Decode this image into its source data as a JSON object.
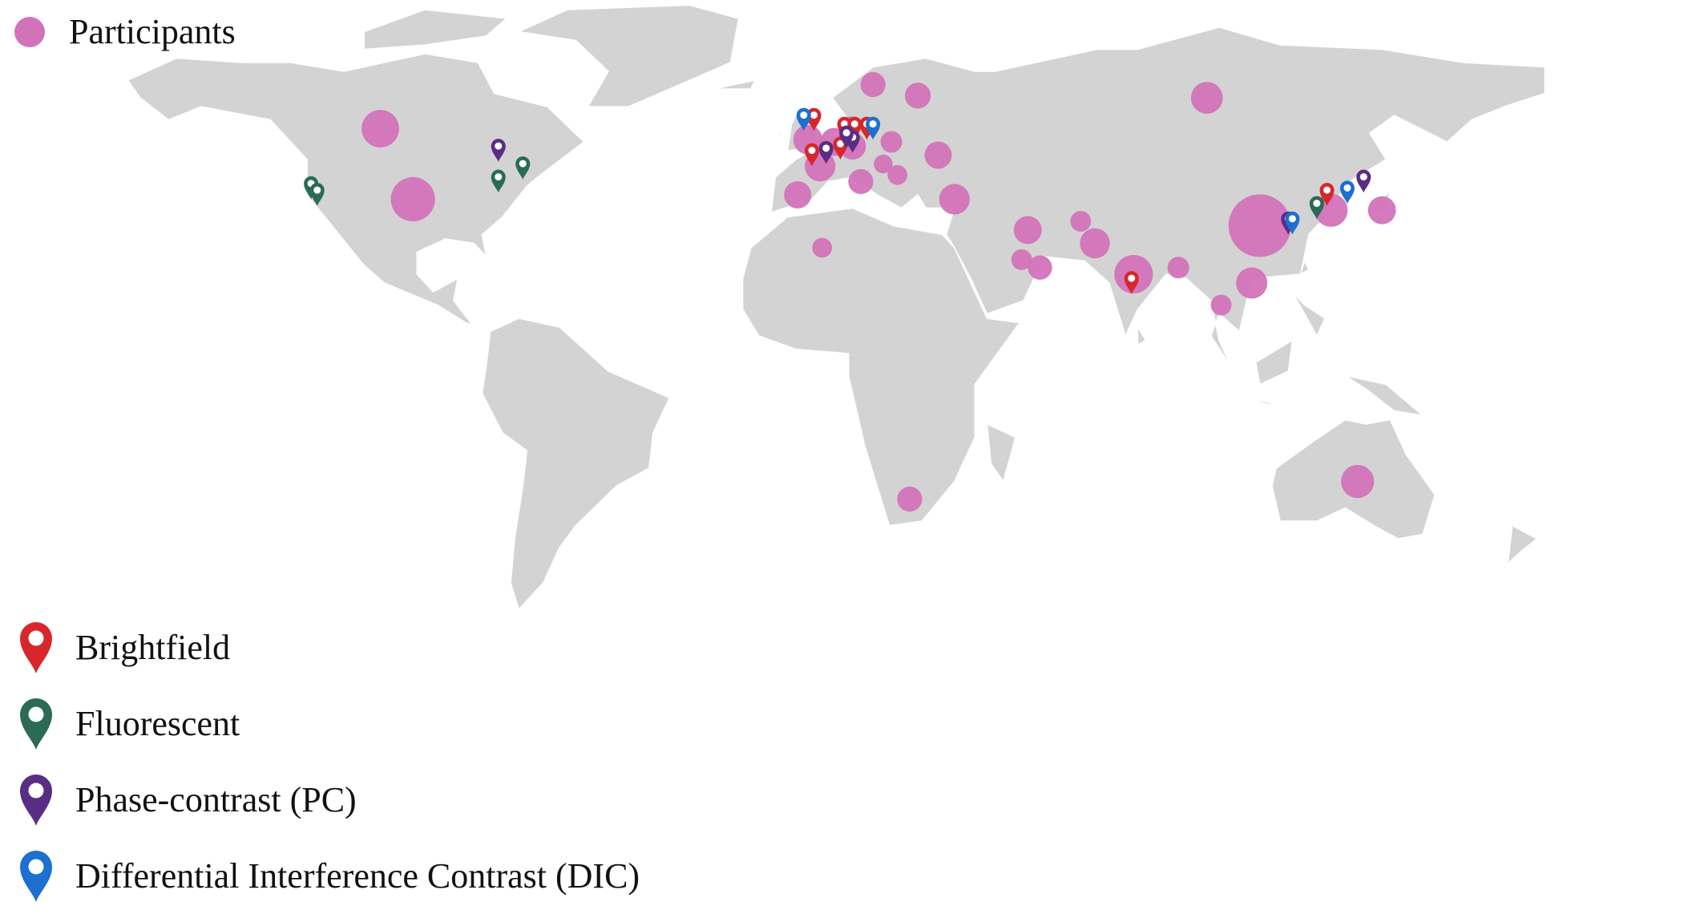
{
  "legend": {
    "participants_label": "Participants",
    "participants_color": "#d273b9",
    "markers": [
      {
        "label": "Brightfield",
        "color": "#d7262c"
      },
      {
        "label": "Fluorescent",
        "color": "#2b6a55"
      },
      {
        "label": "Phase-contrast (PC)",
        "color": "#5a2d85"
      },
      {
        "label": "Differential Interference Contrast (DIC)",
        "color": "#1d6fd0"
      }
    ]
  },
  "map": {
    "land_color": "#d3d3d3",
    "participants": [
      {
        "location": "China",
        "lon": 110,
        "lat": 33,
        "relative_size": 1.0
      },
      {
        "location": "United States",
        "lon": -98,
        "lat": 39,
        "relative_size": 0.5
      },
      {
        "location": "India",
        "lon": 79,
        "lat": 22,
        "relative_size": 0.38
      },
      {
        "location": "Canada",
        "lon": -106,
        "lat": 55,
        "relative_size": 0.36
      },
      {
        "location": "Australia",
        "lon": 134,
        "lat": -25,
        "relative_size": 0.28
      },
      {
        "location": "South Korea",
        "lon": 127.5,
        "lat": 36.5,
        "relative_size": 0.28
      },
      {
        "location": "Russia",
        "lon": 97,
        "lat": 62,
        "relative_size": 0.26
      },
      {
        "location": "Turkey",
        "lon": 35,
        "lat": 39,
        "relative_size": 0.24
      },
      {
        "location": "Vietnam / South China",
        "lon": 108,
        "lat": 20,
        "relative_size": 0.25
      },
      {
        "location": "Pakistan",
        "lon": 69.5,
        "lat": 29,
        "relative_size": 0.23
      },
      {
        "location": "Iran",
        "lon": 53,
        "lat": 32,
        "relative_size": 0.2
      },
      {
        "location": "Ukraine",
        "lon": 31,
        "lat": 49,
        "relative_size": 0.19
      },
      {
        "location": "Japan",
        "lon": 140,
        "lat": 36.5,
        "relative_size": 0.2
      },
      {
        "location": "Spain",
        "lon": -3.5,
        "lat": 40,
        "relative_size": 0.19
      },
      {
        "location": "Finland",
        "lon": 26,
        "lat": 62.5,
        "relative_size": 0.17
      },
      {
        "location": "Sweden / Norway",
        "lon": 15,
        "lat": 65,
        "relative_size": 0.16
      },
      {
        "location": "South Africa",
        "lon": 24,
        "lat": -29,
        "relative_size": 0.16
      },
      {
        "location": "Netherlands",
        "lon": 5.5,
        "lat": 52,
        "relative_size": 0.2
      },
      {
        "location": "Germany",
        "lon": 10,
        "lat": 51,
        "relative_size": 0.18
      },
      {
        "location": "Italy",
        "lon": 12,
        "lat": 43,
        "relative_size": 0.16
      },
      {
        "location": "United Kingdom",
        "lon": -1,
        "lat": 52.5,
        "relative_size": 0.22
      },
      {
        "location": "France",
        "lon": 2,
        "lat": 46.5,
        "relative_size": 0.24
      },
      {
        "location": "Oman / UAE",
        "lon": 56,
        "lat": 23.5,
        "relative_size": 0.15
      },
      {
        "location": "Bangladesh",
        "lon": 90,
        "lat": 23.5,
        "relative_size": 0.12
      },
      {
        "location": "Qatar",
        "lon": 51.5,
        "lat": 25.3,
        "relative_size": 0.11
      },
      {
        "location": "Thailand",
        "lon": 100.5,
        "lat": 15,
        "relative_size": 0.11
      },
      {
        "location": "Afghanistan",
        "lon": 66,
        "lat": 34,
        "relative_size": 0.11
      },
      {
        "location": "Poland",
        "lon": 19.5,
        "lat": 52,
        "relative_size": 0.12
      },
      {
        "location": "Serbia",
        "lon": 21,
        "lat": 44.5,
        "relative_size": 0.1
      },
      {
        "location": "Hungary",
        "lon": 17.5,
        "lat": 47,
        "relative_size": 0.09
      },
      {
        "location": "Algeria",
        "lon": 2.5,
        "lat": 28,
        "relative_size": 0.1
      },
      {
        "location": "Denmark",
        "lon": 9.5,
        "lat": 55.5,
        "relative_size": 0.1
      }
    ],
    "markers": [
      {
        "type": "Brightfield",
        "lon": 78.5,
        "lat": 17.5
      },
      {
        "type": "Brightfield",
        "lon": 8,
        "lat": 52.5
      },
      {
        "type": "Brightfield",
        "lon": 10.5,
        "lat": 52.5
      },
      {
        "type": "Brightfield",
        "lon": 13.5,
        "lat": 52.5
      },
      {
        "type": "Brightfield",
        "lon": 0.5,
        "lat": 54.5
      },
      {
        "type": "Brightfield",
        "lon": 7,
        "lat": 48
      },
      {
        "type": "Brightfield",
        "lon": 0,
        "lat": 46.5
      },
      {
        "type": "Brightfield",
        "lon": 126.5,
        "lat": 37.5
      },
      {
        "type": "Fluorescent",
        "lon": -123,
        "lat": 39
      },
      {
        "type": "Fluorescent",
        "lon": -121.5,
        "lat": 37.5
      },
      {
        "type": "Fluorescent",
        "lon": -77,
        "lat": 40.5
      },
      {
        "type": "Fluorescent",
        "lon": -71,
        "lat": 43.5
      },
      {
        "type": "Fluorescent",
        "lon": 124,
        "lat": 34.5
      },
      {
        "type": "Phase-contrast (PC)",
        "lon": -77,
        "lat": 47.5
      },
      {
        "type": "Phase-contrast (PC)",
        "lon": 3.5,
        "lat": 47
      },
      {
        "type": "Phase-contrast (PC)",
        "lon": 10,
        "lat": 49.5
      },
      {
        "type": "Phase-contrast (PC)",
        "lon": 8.5,
        "lat": 50.5
      },
      {
        "type": "Phase-contrast (PC)",
        "lon": 117,
        "lat": 31
      },
      {
        "type": "Phase-contrast (PC)",
        "lon": 135.5,
        "lat": 40.5
      },
      {
        "type": "Differential Interference Contrast (DIC)",
        "lon": -2,
        "lat": 54.5
      },
      {
        "type": "Differential Interference Contrast (DIC)",
        "lon": 15,
        "lat": 52.5
      },
      {
        "type": "Differential Interference Contrast (DIC)",
        "lon": 118,
        "lat": 31
      },
      {
        "type": "Differential Interference Contrast (DIC)",
        "lon": 131.5,
        "lat": 38
      }
    ]
  }
}
